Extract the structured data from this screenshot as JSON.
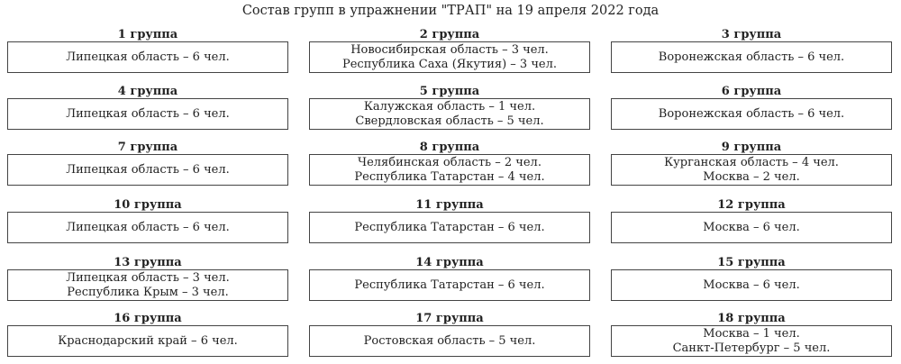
{
  "title": "Состав групп в упражнении \"ТРАП\" на 19 апреля 2022 года",
  "groups": [
    {
      "label": "1 группа",
      "lines": [
        "Липецкая область – 6 чел."
      ]
    },
    {
      "label": "2 группа",
      "lines": [
        "Новосибирская область – 3 чел.",
        "Республика Саха (Якутия) – 3 чел."
      ]
    },
    {
      "label": "3 группа",
      "lines": [
        "Воронежская область – 6 чел."
      ]
    },
    {
      "label": "4 группа",
      "lines": [
        "Липецкая область – 6 чел."
      ]
    },
    {
      "label": "5 группа",
      "lines": [
        "Калужская область – 1 чел.",
        "Свердловская область – 5 чел."
      ]
    },
    {
      "label": "6 группа",
      "lines": [
        "Воронежская область – 6 чел."
      ]
    },
    {
      "label": "7 группа",
      "lines": [
        "Липецкая область – 6 чел."
      ]
    },
    {
      "label": "8 группа",
      "lines": [
        "Челябинская область – 2 чел.",
        "Республика Татарстан – 4 чел."
      ]
    },
    {
      "label": "9 группа",
      "lines": [
        "Курганская область – 4 чел.",
        "Москва – 2 чел."
      ]
    },
    {
      "label": "10 группа",
      "lines": [
        "Липецкая область – 6 чел."
      ]
    },
    {
      "label": "11 группа",
      "lines": [
        "Республика Татарстан – 6 чел."
      ]
    },
    {
      "label": "12 группа",
      "lines": [
        "Москва – 6 чел."
      ]
    },
    {
      "label": "13 группа",
      "lines": [
        "Липецкая область – 3 чел.",
        "Республика Крым – 3 чел."
      ]
    },
    {
      "label": "14 группа",
      "lines": [
        "Республика Татарстан – 6 чел."
      ]
    },
    {
      "label": "15 группа",
      "lines": [
        "Москва – 6 чел."
      ]
    },
    {
      "label": "16 группа",
      "lines": [
        "Краснодарский край – 6 чел."
      ]
    },
    {
      "label": "17 группа",
      "lines": [
        "Ростовская область – 5 чел."
      ]
    },
    {
      "label": "18 группа",
      "lines": [
        "Москва – 1 чел.",
        "Санкт-Петербург – 5 чел."
      ]
    }
  ]
}
